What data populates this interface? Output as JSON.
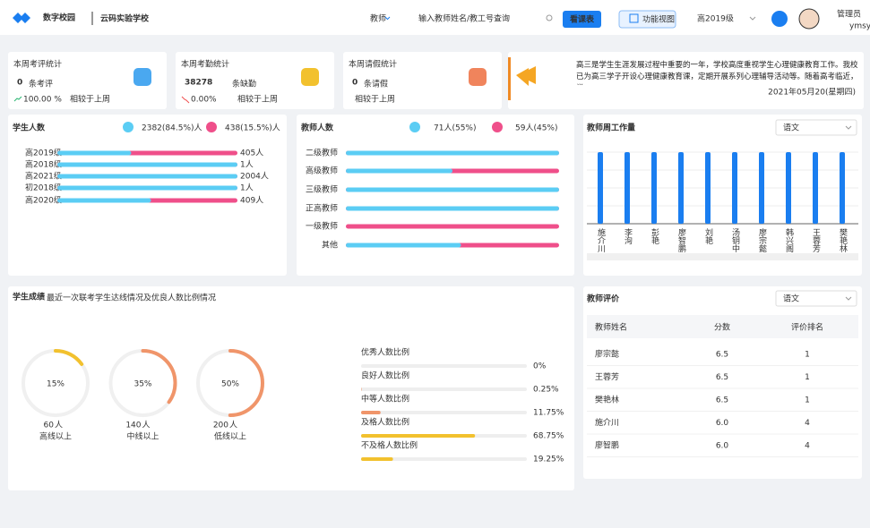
{
  "header": {
    "logo": "数字校园",
    "school": "云码实验学校",
    "nav": "教师",
    "search_placeholder": "输入教师姓名/教工号查询",
    "schedule_button": "看课表",
    "view_button": "功能视图",
    "grade_select": "高2019级",
    "user": "管理员",
    "user_id": "ymsy"
  },
  "stats": [
    {
      "title": "本周考评统计",
      "value": "0",
      "unit": "条考评",
      "change": "100.00 %",
      "compare": "相较于上周"
    },
    {
      "title": "本周考勤统计",
      "value": "38278",
      "unit": "条缺勤",
      "change": "0.00%",
      "compare": "相较于上周"
    },
    {
      "title": "本周请假统计",
      "value": "0",
      "unit": "条请假",
      "compare": "相较于上周"
    }
  ],
  "notice": {
    "text": "高三是学生生涯发展过程中重要的一年，学校高度重视学生心理健康教育工作。我校已为高三学子开设心理健康教育课，定期开展系列心理辅导活动等。随着高考临近，学…",
    "date": "2021年05月20(星期四)"
  },
  "students": {
    "title": "学生人数",
    "male": "2382(84.5%)人",
    "female": "438(15.5%)人",
    "rows": [
      {
        "grade": "高2019级",
        "male_share": 41,
        "total": "405人"
      },
      {
        "grade": "高2018级",
        "male_share": 100,
        "total": "1人"
      },
      {
        "grade": "高2021级",
        "male_share": 100,
        "total": "2004人"
      },
      {
        "grade": "初2018级",
        "male_share": 100,
        "total": "1人"
      },
      {
        "grade": "高2020级",
        "male_share": 52,
        "total": "409人"
      }
    ]
  },
  "teachers": {
    "title": "教师人数",
    "male": "71人(55%)",
    "female": "59人(45%)",
    "rows": [
      {
        "level": "二级教师",
        "male_share": 100
      },
      {
        "level": "高级教师",
        "male_share": 50
      },
      {
        "level": "三级教师",
        "male_share": 100
      },
      {
        "level": "正高教师",
        "male_share": 100
      },
      {
        "level": "一级教师",
        "male_share": 0
      },
      {
        "level": "其他",
        "male_share": 54
      }
    ]
  },
  "workload": {
    "title": "教师周工作量",
    "subject": "语文",
    "teachers": [
      "施介川",
      "李洵",
      "彭艳",
      "廖智鹏",
      "刘艳",
      "汤钥中",
      "廖宗懿",
      "韩兴阁",
      "王蓉芳",
      "樊艳林"
    ],
    "values": [
      1,
      1,
      1,
      1,
      1,
      1,
      1,
      1,
      1,
      1
    ]
  },
  "scores": {
    "title": "学生成绩",
    "subtitle": "最近一次联考学生达线情况及优良人数比例情况",
    "donuts": [
      {
        "value": 15,
        "value_label": "15%",
        "count": "60",
        "count_unit": "人",
        "label": "高线以上",
        "color": "#f2c12e"
      },
      {
        "value": 35,
        "value_label": "35%",
        "count": "140",
        "count_unit": "人",
        "label": "中线以上",
        "color": "#f0956a"
      },
      {
        "value": 50,
        "value_label": "50%",
        "count": "200",
        "count_unit": "人",
        "label": "低线以上",
        "color": "#f0956a"
      }
    ],
    "ratios": [
      {
        "label": "优秀人数比例",
        "value": 0,
        "value_label": "0%",
        "color": "#f0956a"
      },
      {
        "label": "良好人数比例",
        "value": 0.25,
        "value_label": "0.25%",
        "color": "#f0956a"
      },
      {
        "label": "中等人数比例",
        "value": 11.75,
        "value_label": "11.75%",
        "color": "#f0956a"
      },
      {
        "label": "及格人数比例",
        "value": 68.75,
        "value_label": "68.75%",
        "color": "#f2c12e"
      },
      {
        "label": "不及格人数比例",
        "value": 19.25,
        "value_label": "19.25%",
        "color": "#f2c12e"
      }
    ]
  },
  "evaluation": {
    "title": "教师评价",
    "subject": "语文",
    "columns": [
      "教师姓名",
      "分数",
      "评价排名"
    ],
    "rows": [
      [
        "廖宗懿",
        "6.5",
        "1"
      ],
      [
        "王蓉芳",
        "6.5",
        "1"
      ],
      [
        "樊艳林",
        "6.5",
        "1"
      ],
      [
        "施介川",
        "6.0",
        "4"
      ],
      [
        "廖智鹏",
        "6.0",
        "4"
      ]
    ]
  }
}
